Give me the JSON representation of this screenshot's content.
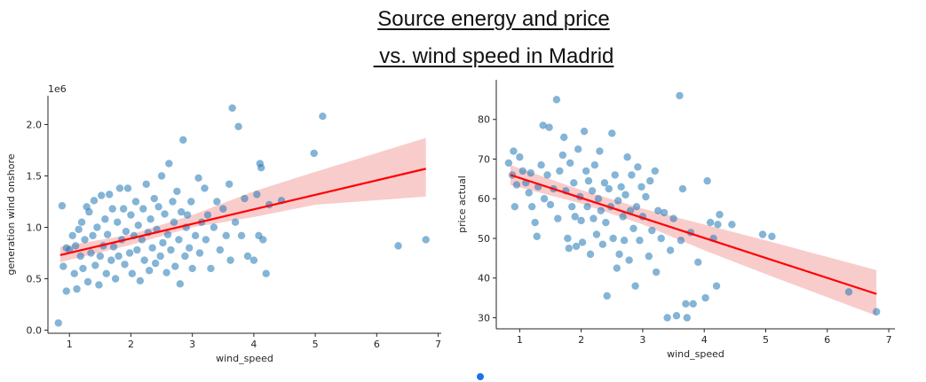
{
  "page": {
    "title_line1": "Source energy and price",
    "title_line2": " vs. wind speed in Madrid"
  },
  "colors": {
    "point": "#1f77b4",
    "regression": "#ff0000",
    "band": "#f4a3a3",
    "axis": "#262626",
    "indicator": "#1a73e8"
  },
  "chart_data": [
    {
      "type": "scatter",
      "xlabel": "wind_speed",
      "ylabel": "generation wind onshore",
      "offset_label": "1e6",
      "xlim": [
        0.65,
        7.05
      ],
      "ylim": [
        -0.03,
        2.28
      ],
      "xticks": [
        1,
        2,
        3,
        4,
        5,
        6,
        7
      ],
      "yticks": [
        0.0,
        0.5,
        1.0,
        1.5,
        2.0
      ],
      "ytick_labels": [
        "0.0",
        "0.5",
        "1.0",
        "1.5",
        "2.0"
      ],
      "regression": {
        "x": [
          0.85,
          6.8
        ],
        "y": [
          0.73,
          1.57
        ]
      },
      "ci_band": {
        "x": [
          0.85,
          2.0,
          3.0,
          4.0,
          5.0,
          6.8
        ],
        "upper": [
          0.81,
          0.93,
          1.12,
          1.35,
          1.54,
          1.87
        ],
        "lower": [
          0.66,
          0.83,
          1.0,
          1.1,
          1.22,
          1.3
        ]
      },
      "points": [
        [
          0.82,
          0.07
        ],
        [
          0.88,
          1.21
        ],
        [
          0.9,
          0.62
        ],
        [
          0.95,
          0.38
        ],
        [
          0.95,
          0.8
        ],
        [
          1.0,
          0.78
        ],
        [
          1.05,
          0.92
        ],
        [
          1.08,
          0.55
        ],
        [
          1.1,
          0.82
        ],
        [
          1.12,
          0.4
        ],
        [
          1.15,
          0.98
        ],
        [
          1.18,
          0.72
        ],
        [
          1.2,
          1.05
        ],
        [
          1.22,
          0.6
        ],
        [
          1.25,
          0.88
        ],
        [
          1.28,
          1.2
        ],
        [
          1.3,
          0.47
        ],
        [
          1.32,
          1.15
        ],
        [
          1.35,
          0.75
        ],
        [
          1.38,
          0.92
        ],
        [
          1.4,
          1.26
        ],
        [
          1.42,
          0.63
        ],
        [
          1.45,
          1.0
        ],
        [
          1.48,
          0.44
        ],
        [
          1.5,
          0.72
        ],
        [
          1.52,
          1.31
        ],
        [
          1.55,
          0.82
        ],
        [
          1.58,
          1.08
        ],
        [
          1.6,
          0.55
        ],
        [
          1.62,
          0.93
        ],
        [
          1.65,
          1.32
        ],
        [
          1.68,
          0.68
        ],
        [
          1.7,
          1.18
        ],
        [
          1.72,
          0.81
        ],
        [
          1.75,
          0.5
        ],
        [
          1.78,
          1.05
        ],
        [
          1.8,
          0.72
        ],
        [
          1.82,
          1.38
        ],
        [
          1.85,
          0.88
        ],
        [
          1.88,
          1.18
        ],
        [
          1.9,
          0.64
        ],
        [
          1.92,
          0.96
        ],
        [
          1.95,
          1.38
        ],
        [
          1.98,
          0.75
        ],
        [
          2.0,
          1.12
        ],
        [
          2.02,
          0.55
        ],
        [
          2.05,
          0.92
        ],
        [
          2.08,
          1.25
        ],
        [
          2.1,
          0.78
        ],
        [
          2.12,
          1.02
        ],
        [
          2.15,
          0.48
        ],
        [
          2.18,
          0.88
        ],
        [
          2.2,
          1.18
        ],
        [
          2.22,
          0.68
        ],
        [
          2.25,
          1.42
        ],
        [
          2.28,
          0.95
        ],
        [
          2.3,
          0.58
        ],
        [
          2.32,
          1.08
        ],
        [
          2.35,
          0.8
        ],
        [
          2.38,
          1.28
        ],
        [
          2.4,
          0.65
        ],
        [
          2.42,
          0.98
        ],
        [
          2.45,
          1.2
        ],
        [
          2.48,
          0.72
        ],
        [
          2.5,
          1.5
        ],
        [
          2.52,
          0.85
        ],
        [
          2.55,
          1.13
        ],
        [
          2.58,
          0.56
        ],
        [
          2.6,
          0.93
        ],
        [
          2.62,
          1.62
        ],
        [
          2.65,
          0.78
        ],
        [
          2.68,
          1.25
        ],
        [
          2.7,
          1.05
        ],
        [
          2.72,
          0.62
        ],
        [
          2.75,
          1.35
        ],
        [
          2.78,
          0.88
        ],
        [
          2.8,
          0.45
        ],
        [
          2.82,
          1.15
        ],
        [
          2.85,
          1.85
        ],
        [
          2.88,
          0.72
        ],
        [
          2.9,
          1.0
        ],
        [
          2.92,
          1.12
        ],
        [
          2.95,
          0.8
        ],
        [
          2.98,
          1.25
        ],
        [
          3.0,
          0.6
        ],
        [
          3.05,
          0.92
        ],
        [
          3.1,
          1.48
        ],
        [
          3.12,
          0.75
        ],
        [
          3.15,
          1.05
        ],
        [
          3.2,
          1.38
        ],
        [
          3.22,
          0.88
        ],
        [
          3.25,
          1.12
        ],
        [
          3.3,
          0.6
        ],
        [
          3.35,
          1.0
        ],
        [
          3.4,
          1.25
        ],
        [
          3.45,
          0.78
        ],
        [
          3.5,
          1.18
        ],
        [
          3.55,
          0.92
        ],
        [
          3.6,
          1.42
        ],
        [
          3.62,
          0.68
        ],
        [
          3.65,
          2.16
        ],
        [
          3.7,
          1.05
        ],
        [
          3.75,
          1.98
        ],
        [
          3.8,
          0.92
        ],
        [
          3.85,
          1.28
        ],
        [
          3.9,
          0.72
        ],
        [
          4.0,
          0.68
        ],
        [
          4.05,
          1.32
        ],
        [
          4.08,
          0.92
        ],
        [
          4.1,
          1.62
        ],
        [
          4.12,
          1.58
        ],
        [
          4.15,
          0.88
        ],
        [
          4.2,
          0.55
        ],
        [
          4.25,
          1.22
        ],
        [
          4.45,
          1.26
        ],
        [
          4.98,
          1.72
        ],
        [
          5.12,
          2.08
        ],
        [
          6.35,
          0.82
        ],
        [
          6.8,
          0.88
        ]
      ]
    },
    {
      "type": "scatter",
      "xlabel": "wind_speed",
      "ylabel": "price actual",
      "xlim": [
        0.62,
        7.1
      ],
      "ylim": [
        27.2,
        90
      ],
      "xticks": [
        1,
        2,
        3,
        4,
        5,
        6,
        7
      ],
      "yticks": [
        30,
        40,
        50,
        60,
        70,
        80
      ],
      "ytick_labels": [
        "30",
        "40",
        "50",
        "60",
        "70",
        "80"
      ],
      "regression": {
        "x": [
          0.85,
          6.8
        ],
        "y": [
          66.0,
          36.0
        ]
      },
      "ci_band": {
        "x": [
          0.85,
          2.0,
          3.0,
          4.0,
          5.0,
          6.8
        ],
        "upper": [
          68.5,
          62.2,
          57.5,
          53.5,
          49.5,
          42.0
        ],
        "lower": [
          63.5,
          58.8,
          53.5,
          47.0,
          41.0,
          30.5
        ]
      },
      "points": [
        [
          0.82,
          69.0
        ],
        [
          0.88,
          66.0
        ],
        [
          0.9,
          72.0
        ],
        [
          0.92,
          58.0
        ],
        [
          0.95,
          63.5
        ],
        [
          1.0,
          70.5
        ],
        [
          1.05,
          67.0
        ],
        [
          1.1,
          64.0
        ],
        [
          1.15,
          61.5
        ],
        [
          1.18,
          66.5
        ],
        [
          1.2,
          58.0
        ],
        [
          1.25,
          54.0
        ],
        [
          1.28,
          50.5
        ],
        [
          1.3,
          63.0
        ],
        [
          1.35,
          68.5
        ],
        [
          1.38,
          78.5
        ],
        [
          1.4,
          60.0
        ],
        [
          1.45,
          66.0
        ],
        [
          1.48,
          78.0
        ],
        [
          1.5,
          58.5
        ],
        [
          1.55,
          62.5
        ],
        [
          1.6,
          85.0
        ],
        [
          1.62,
          55.0
        ],
        [
          1.65,
          67.0
        ],
        [
          1.7,
          71.0
        ],
        [
          1.72,
          75.5
        ],
        [
          1.75,
          62.0
        ],
        [
          1.78,
          50.0
        ],
        [
          1.8,
          47.5
        ],
        [
          1.82,
          69.0
        ],
        [
          1.85,
          58.0
        ],
        [
          1.88,
          64.0
        ],
        [
          1.9,
          55.5
        ],
        [
          1.92,
          48.0
        ],
        [
          1.95,
          72.5
        ],
        [
          1.98,
          60.5
        ],
        [
          2.0,
          54.5
        ],
        [
          2.02,
          49.0
        ],
        [
          2.05,
          77.0
        ],
        [
          2.08,
          67.0
        ],
        [
          2.1,
          58.0
        ],
        [
          2.12,
          64.5
        ],
        [
          2.15,
          46.0
        ],
        [
          2.18,
          62.0
        ],
        [
          2.2,
          55.0
        ],
        [
          2.22,
          68.5
        ],
        [
          2.25,
          51.0
        ],
        [
          2.28,
          60.0
        ],
        [
          2.3,
          72.0
        ],
        [
          2.32,
          57.0
        ],
        [
          2.35,
          48.5
        ],
        [
          2.38,
          64.0
        ],
        [
          2.4,
          54.0
        ],
        [
          2.42,
          35.5
        ],
        [
          2.45,
          62.5
        ],
        [
          2.48,
          58.0
        ],
        [
          2.5,
          76.5
        ],
        [
          2.52,
          50.0
        ],
        [
          2.55,
          66.0
        ],
        [
          2.58,
          42.5
        ],
        [
          2.6,
          59.5
        ],
        [
          2.62,
          46.0
        ],
        [
          2.65,
          63.0
        ],
        [
          2.68,
          55.5
        ],
        [
          2.7,
          49.5
        ],
        [
          2.72,
          61.0
        ],
        [
          2.75,
          70.5
        ],
        [
          2.78,
          44.5
        ],
        [
          2.8,
          57.0
        ],
        [
          2.82,
          66.0
        ],
        [
          2.85,
          52.5
        ],
        [
          2.88,
          38.0
        ],
        [
          2.9,
          58.0
        ],
        [
          2.92,
          68.0
        ],
        [
          2.95,
          49.5
        ],
        [
          2.98,
          63.0
        ],
        [
          3.0,
          55.5
        ],
        [
          3.05,
          60.5
        ],
        [
          3.1,
          45.5
        ],
        [
          3.12,
          64.5
        ],
        [
          3.15,
          52.0
        ],
        [
          3.2,
          67.0
        ],
        [
          3.22,
          41.5
        ],
        [
          3.25,
          57.0
        ],
        [
          3.3,
          50.0
        ],
        [
          3.35,
          56.5
        ],
        [
          3.4,
          30.0
        ],
        [
          3.45,
          47.0
        ],
        [
          3.5,
          55.0
        ],
        [
          3.55,
          30.5
        ],
        [
          3.6,
          86.0
        ],
        [
          3.62,
          49.5
        ],
        [
          3.65,
          62.5
        ],
        [
          3.7,
          33.5
        ],
        [
          3.72,
          30.0
        ],
        [
          3.78,
          51.5
        ],
        [
          3.82,
          33.5
        ],
        [
          3.9,
          44.0
        ],
        [
          4.02,
          35.0
        ],
        [
          4.05,
          64.5
        ],
        [
          4.1,
          54.0
        ],
        [
          4.15,
          50.0
        ],
        [
          4.2,
          38.0
        ],
        [
          4.22,
          53.5
        ],
        [
          4.25,
          56.0
        ],
        [
          4.45,
          53.5
        ],
        [
          4.95,
          51.0
        ],
        [
          5.1,
          50.5
        ],
        [
          6.35,
          36.5
        ],
        [
          6.8,
          31.5
        ]
      ]
    }
  ]
}
